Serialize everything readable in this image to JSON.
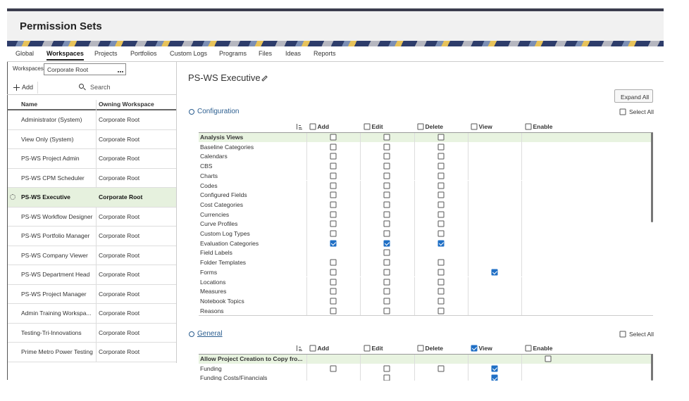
{
  "header": {
    "title": "Permission Sets"
  },
  "tabs": {
    "items": [
      "Global",
      "Workspaces",
      "Projects",
      "Portfolios",
      "Custom Logs",
      "Programs",
      "Files",
      "Ideas",
      "Reports"
    ],
    "active": 1
  },
  "workspace_filter": {
    "label": "Workspaces",
    "value": "Corporate Root"
  },
  "toolbar": {
    "add": "Add",
    "search": "Search"
  },
  "list": {
    "columns": [
      "Name",
      "Owning Workspace"
    ],
    "rows": [
      [
        "Administrator (System)",
        "Corporate Root"
      ],
      [
        "View Only (System)",
        "Corporate Root"
      ],
      [
        "PS-WS Project Admin",
        "Corporate Root"
      ],
      [
        "PS-WS CPM Scheduler",
        "Corporate Root"
      ],
      [
        "PS-WS Executive",
        "Corporate Root"
      ],
      [
        "PS-WS Workflow Designer",
        "Corporate Root"
      ],
      [
        "PS-WS Portfolio Manager",
        "Corporate Root"
      ],
      [
        "PS-WS Company Viewer",
        "Corporate Root"
      ],
      [
        "PS-WS Department Head",
        "Corporate Root"
      ],
      [
        "PS-WS Project Manager",
        "Corporate Root"
      ],
      [
        "Admin Training Workspa...",
        "Corporate Root"
      ],
      [
        "Testing-Tri-Innovations",
        "Corporate Root"
      ],
      [
        "Prime Metro Power Testing",
        "Corporate Root"
      ]
    ],
    "selected": 4
  },
  "detail": {
    "title": "PS-WS Executive",
    "expand_all": "Expand All",
    "sections": [
      {
        "title": "Configuration",
        "select_all": "Select All",
        "select_all_checked": false,
        "columns": [
          {
            "label": "Add",
            "checked": false
          },
          {
            "label": "Edit",
            "checked": false
          },
          {
            "label": "Delete",
            "checked": false
          },
          {
            "label": "View",
            "checked": false
          },
          {
            "label": "Enable",
            "checked": false
          }
        ],
        "rows": [
          {
            "label": "Analysis Views",
            "group": true,
            "cells": [
              false,
              false,
              false,
              null,
              null
            ]
          },
          {
            "label": "Baseline Categories",
            "group": false,
            "cells": [
              false,
              false,
              false,
              null,
              null
            ]
          },
          {
            "label": "Calendars",
            "group": false,
            "cells": [
              false,
              false,
              false,
              null,
              null
            ]
          },
          {
            "label": "CBS",
            "group": false,
            "cells": [
              false,
              false,
              false,
              null,
              null
            ]
          },
          {
            "label": "Charts",
            "group": false,
            "cells": [
              false,
              false,
              false,
              null,
              null
            ]
          },
          {
            "label": "Codes",
            "group": false,
            "cells": [
              false,
              false,
              false,
              null,
              null
            ]
          },
          {
            "label": "Configured Fields",
            "group": false,
            "cells": [
              false,
              false,
              false,
              null,
              null
            ]
          },
          {
            "label": "Cost Categories",
            "group": false,
            "cells": [
              false,
              false,
              false,
              null,
              null
            ]
          },
          {
            "label": "Currencies",
            "group": false,
            "cells": [
              false,
              false,
              false,
              null,
              null
            ]
          },
          {
            "label": "Curve Profiles",
            "group": false,
            "cells": [
              false,
              false,
              false,
              null,
              null
            ]
          },
          {
            "label": "Custom Log Types",
            "group": false,
            "cells": [
              false,
              false,
              false,
              null,
              null
            ]
          },
          {
            "label": "Evaluation Categories",
            "group": false,
            "cells": [
              true,
              true,
              true,
              null,
              null
            ]
          },
          {
            "label": "Field Labels",
            "group": false,
            "cells": [
              null,
              false,
              null,
              null,
              null
            ]
          },
          {
            "label": "Folder Templates",
            "group": false,
            "cells": [
              false,
              false,
              false,
              null,
              null
            ]
          },
          {
            "label": "Forms",
            "group": false,
            "cells": [
              false,
              false,
              false,
              true,
              null
            ]
          },
          {
            "label": "Locations",
            "group": false,
            "cells": [
              false,
              false,
              false,
              null,
              null
            ]
          },
          {
            "label": "Measures",
            "group": false,
            "cells": [
              false,
              false,
              false,
              null,
              null
            ]
          },
          {
            "label": "Notebook Topics",
            "group": false,
            "cells": [
              false,
              false,
              false,
              null,
              null
            ]
          },
          {
            "label": "Reasons",
            "group": false,
            "cells": [
              false,
              false,
              false,
              null,
              null
            ]
          }
        ]
      },
      {
        "title": "General",
        "select_all": "Select All",
        "select_all_checked": false,
        "columns": [
          {
            "label": "Add",
            "checked": false
          },
          {
            "label": "Edit",
            "checked": false
          },
          {
            "label": "Delete",
            "checked": false
          },
          {
            "label": "View",
            "checked": true
          },
          {
            "label": "Enable",
            "checked": false
          }
        ],
        "rows": [
          {
            "label": "Allow Project Creation to Copy fro...",
            "group": true,
            "cells": [
              null,
              null,
              null,
              null,
              false
            ]
          },
          {
            "label": "Funding",
            "group": false,
            "cells": [
              false,
              false,
              false,
              true,
              null
            ]
          },
          {
            "label": "Funding Costs/Financials",
            "group": false,
            "cells": [
              null,
              false,
              null,
              true,
              null
            ]
          }
        ]
      }
    ]
  }
}
